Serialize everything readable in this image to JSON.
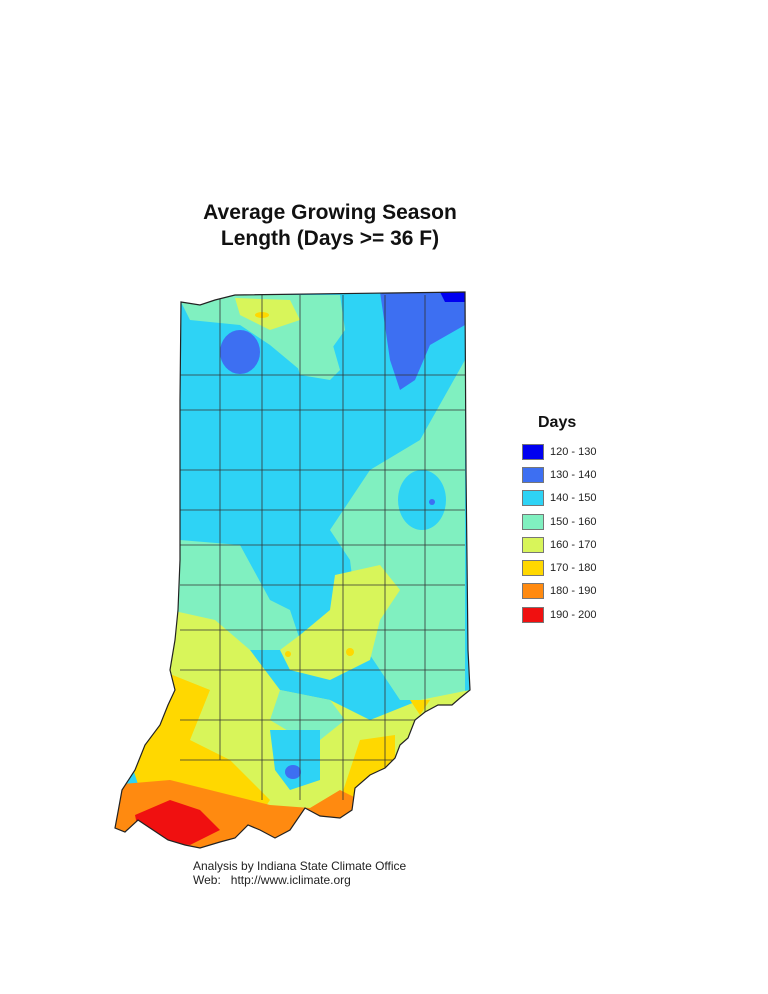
{
  "title": {
    "line1": "Average Growing Season",
    "line2": "Length (Days >= 36 F)"
  },
  "legend": {
    "title": "Days",
    "items": [
      {
        "label": "120 - 130",
        "color": "#0000f0"
      },
      {
        "label": "130 - 140",
        "color": "#3d6ff2"
      },
      {
        "label": "140 - 150",
        "color": "#2ed3f5"
      },
      {
        "label": "150 - 160",
        "color": "#80f0c0"
      },
      {
        "label": "160 - 170",
        "color": "#d8f55a"
      },
      {
        "label": "170 - 180",
        "color": "#ffd800"
      },
      {
        "label": "180 - 190",
        "color": "#ff8a10"
      },
      {
        "label": "190 - 200",
        "color": "#f01010"
      }
    ]
  },
  "credit": {
    "line1": "Analysis by Indiana State Climate Office",
    "line2": "Web:   http://www.iclimate.org"
  },
  "map": {
    "region": "Indiana",
    "units": "Days"
  }
}
